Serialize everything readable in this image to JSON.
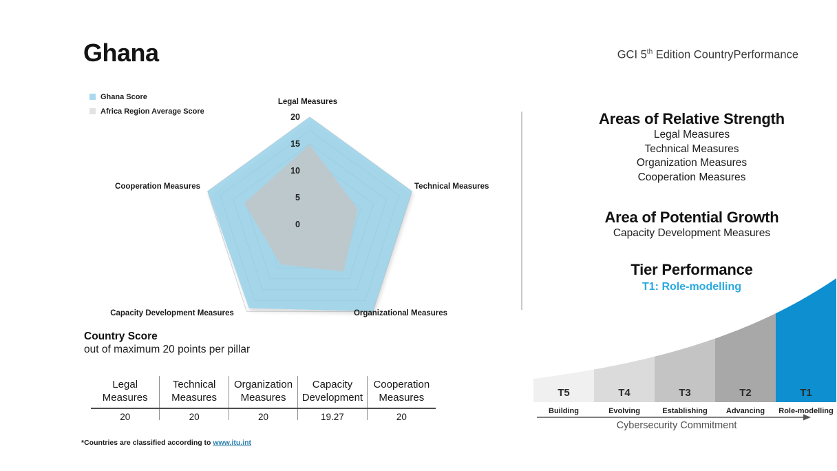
{
  "header": {
    "country": "Ghana",
    "report_title_prefix": "GCI 5",
    "report_title_sup": "th",
    "report_title_suffix": " Edition CountryPerformance"
  },
  "legend": {
    "items": [
      {
        "label": "Ghana Score",
        "color": "#a9d9ee"
      },
      {
        "label": "Africa Region Average Score",
        "color": "#e3e3e3"
      }
    ]
  },
  "chart_data": [
    {
      "type": "radar",
      "axes": [
        "Legal Measures",
        "Technical Measures",
        "Organizational Measures",
        "Capacity Development Measures",
        "Cooperation Measures"
      ],
      "rmax": 20,
      "rticks": [
        0,
        5,
        10,
        15,
        20
      ],
      "grid_interval": 2.5,
      "series": [
        {
          "name": "Ghana Score",
          "values": [
            20,
            20,
            20,
            19.27,
            20
          ],
          "fill_color": "#93cfe9",
          "fill_opacity": 0.8,
          "shadow": true
        },
        {
          "name": "Africa Region Average Score",
          "values": [
            14.9,
            9.4,
            10.8,
            9.2,
            12.8
          ],
          "fill_color": "#c2c6c8",
          "fill_opacity": 0.85,
          "estimated": true
        }
      ]
    },
    {
      "type": "tier-curve",
      "tiers": [
        {
          "id": "T5",
          "name": "Building",
          "color": "#f0f0f0"
        },
        {
          "id": "T4",
          "name": "Evolving",
          "color": "#dbdbdb"
        },
        {
          "id": "T3",
          "name": "Establishing",
          "color": "#c4c4c4"
        },
        {
          "id": "T2",
          "name": "Advancing",
          "color": "#a8a8a8"
        },
        {
          "id": "T1",
          "name": "Role-modelling",
          "color": "#0d8fd0",
          "highlight": true
        }
      ],
      "xlabel": "Cybersecurity Commitment",
      "highlight_color": "#0d8fd0"
    }
  ],
  "right_panel": {
    "strength": {
      "title": "Areas of Relative Strength",
      "items": [
        "Legal Measures",
        "Technical Measures",
        "Organization Measures",
        "Cooperation Measures"
      ]
    },
    "growth": {
      "title": "Area of Potential Growth",
      "items": [
        "Capacity Development Measures"
      ]
    },
    "tier": {
      "title": "Tier Performance",
      "value": "T1: Role-modelling",
      "value_color": "#29a9e0"
    }
  },
  "score_table": {
    "title": "Country Score",
    "subtitle": "out of maximum 20 points per pillar",
    "columns": [
      {
        "line1": "Legal",
        "line2": "Measures",
        "value": "20"
      },
      {
        "line1": "Technical",
        "line2": "Measures",
        "value": "20"
      },
      {
        "line1": "Organization",
        "line2": "Measures",
        "value": "20"
      },
      {
        "line1": "Capacity",
        "line2": "Development",
        "value": "19.27"
      },
      {
        "line1": "Cooperation",
        "line2": "Measures",
        "value": "20"
      }
    ]
  },
  "footnote": {
    "text": "*Countries are classified according to ",
    "link": "www.itu.int"
  }
}
